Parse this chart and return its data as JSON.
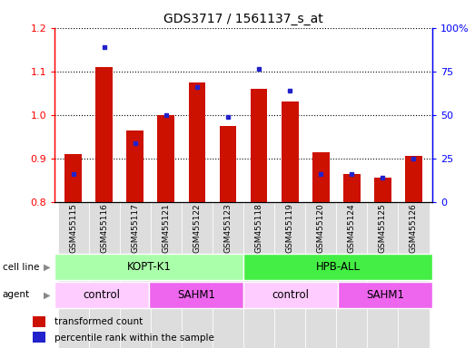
{
  "title": "GDS3717 / 1561137_s_at",
  "samples": [
    "GSM455115",
    "GSM455116",
    "GSM455117",
    "GSM455121",
    "GSM455122",
    "GSM455123",
    "GSM455118",
    "GSM455119",
    "GSM455120",
    "GSM455124",
    "GSM455125",
    "GSM455126"
  ],
  "red_values": [
    0.91,
    1.11,
    0.965,
    1.0,
    1.075,
    0.975,
    1.06,
    1.03,
    0.915,
    0.865,
    0.855,
    0.905
  ],
  "blue_values": [
    0.865,
    1.155,
    0.935,
    1.0,
    1.065,
    0.995,
    1.105,
    1.055,
    0.865,
    0.865,
    0.855,
    0.9
  ],
  "ymin": 0.8,
  "ymax": 1.2,
  "y2min": 0,
  "y2max": 100,
  "yticks": [
    0.8,
    0.9,
    1.0,
    1.1,
    1.2
  ],
  "y2ticks": [
    0,
    25,
    50,
    75,
    100
  ],
  "cell_line_groups": [
    {
      "label": "KOPT-K1",
      "start": 0,
      "end": 6,
      "color": "#aaffaa"
    },
    {
      "label": "HPB-ALL",
      "start": 6,
      "end": 12,
      "color": "#44ee44"
    }
  ],
  "agent_groups": [
    {
      "label": "control",
      "start": 0,
      "end": 3,
      "color": "#ffccff"
    },
    {
      "label": "SAHM1",
      "start": 3,
      "end": 6,
      "color": "#ee66ee"
    },
    {
      "label": "control",
      "start": 6,
      "end": 9,
      "color": "#ffccff"
    },
    {
      "label": "SAHM1",
      "start": 9,
      "end": 12,
      "color": "#ee66ee"
    }
  ],
  "bar_color": "#cc1100",
  "dot_color": "#2222cc",
  "bar_width": 0.55,
  "bg_color": "#ffffff",
  "xtick_bg": "#dddddd"
}
